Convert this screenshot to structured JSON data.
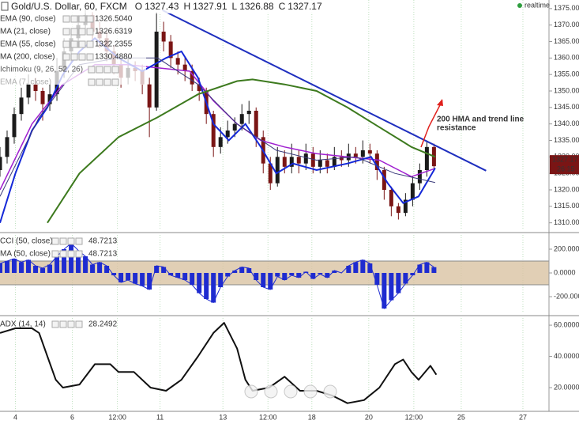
{
  "symbol": "Gold/U.S. Dollar, 60, FXCM",
  "ohlc": [
    {
      "key": "O",
      "value": "1327.43"
    },
    {
      "key": "H",
      "value": "1327.91"
    },
    {
      "key": "L",
      "value": "1326.88"
    },
    {
      "key": "C",
      "value": "1327.17"
    }
  ],
  "status": "realtime",
  "price_tag": {
    "value": 1327.17,
    "label": "1327.17",
    "countdown": "26:15"
  },
  "hidden_indicators": [
    "Ichimoku (9, 26, 52, 26)",
    "EMA (7, close)"
  ],
  "annotation": {
    "text": [
      "200 HMA and trend line",
      "resistance"
    ],
    "color": "#e0201c"
  },
  "chart_data": [
    {
      "type": "candlestick",
      "up_color": "#1b1b1b",
      "down_color": "#7a1515",
      "x": [
        0,
        6,
        12,
        18,
        24,
        30,
        36,
        42,
        48,
        54,
        60,
        66,
        72,
        78,
        84,
        90,
        96,
        102,
        108,
        114,
        120,
        126,
        132,
        138,
        144,
        150,
        156,
        162,
        168,
        174,
        180,
        186,
        192,
        198,
        204,
        210,
        216,
        222,
        228,
        234,
        240,
        246,
        252,
        258,
        264,
        270,
        276,
        282,
        288,
        294,
        300,
        306,
        312,
        318,
        324,
        330,
        336,
        342,
        348,
        354,
        360,
        366
      ],
      "open": [
        1326,
        1330,
        1336,
        1343,
        1348,
        1352,
        1350,
        1346,
        1349,
        1356,
        1362,
        1366,
        1370,
        1373,
        1368,
        1366,
        1362,
        1358,
        1354,
        1357,
        1356,
        1352,
        1345,
        1368,
        1365,
        1360,
        1358,
        1356,
        1352,
        1350,
        1343,
        1333,
        1336,
        1338,
        1340,
        1343,
        1344,
        1336,
        1328,
        1322,
        1330,
        1327,
        1330,
        1328,
        1331,
        1327,
        1329,
        1327,
        1330,
        1329,
        1331,
        1330,
        1332,
        1331,
        1326,
        1320,
        1315,
        1313,
        1317,
        1322,
        1326,
        1333
      ],
      "high": [
        1333,
        1338,
        1345,
        1351,
        1355,
        1354,
        1351,
        1352,
        1360,
        1366,
        1369,
        1373,
        1375,
        1374,
        1371,
        1368,
        1364,
        1360,
        1360,
        1359,
        1358,
        1354,
        1374,
        1371,
        1367,
        1362,
        1360,
        1358,
        1354,
        1351,
        1344,
        1339,
        1341,
        1342,
        1346,
        1347,
        1345,
        1338,
        1330,
        1333,
        1332,
        1334,
        1332,
        1334,
        1333,
        1332,
        1331,
        1333,
        1332,
        1334,
        1333,
        1335,
        1334,
        1332,
        1327,
        1321,
        1316,
        1319,
        1324,
        1328,
        1335,
        1334
      ],
      "low": [
        1324,
        1328,
        1334,
        1341,
        1346,
        1347,
        1341,
        1344,
        1347,
        1354,
        1359,
        1363,
        1367,
        1365,
        1363,
        1359,
        1355,
        1351,
        1352,
        1353,
        1349,
        1336,
        1344,
        1362,
        1357,
        1355,
        1353,
        1350,
        1347,
        1340,
        1330,
        1331,
        1334,
        1336,
        1338,
        1340,
        1333,
        1325,
        1320,
        1321,
        1325,
        1325,
        1325,
        1326,
        1325,
        1325,
        1325,
        1326,
        1327,
        1327,
        1328,
        1328,
        1328,
        1323,
        1317,
        1312,
        1311,
        1312,
        1315,
        1320,
        1324,
        1326
      ],
      "close": [
        1330,
        1336,
        1343,
        1348,
        1352,
        1350,
        1346,
        1349,
        1356,
        1362,
        1366,
        1370,
        1373,
        1368,
        1366,
        1362,
        1358,
        1354,
        1357,
        1356,
        1352,
        1345,
        1368,
        1365,
        1360,
        1358,
        1356,
        1352,
        1350,
        1343,
        1333,
        1336,
        1338,
        1340,
        1343,
        1344,
        1336,
        1328,
        1322,
        1330,
        1327,
        1330,
        1328,
        1331,
        1327,
        1329,
        1327,
        1330,
        1329,
        1331,
        1330,
        1332,
        1331,
        1326,
        1320,
        1315,
        1313,
        1317,
        1322,
        1326,
        1333,
        1327.17
      ],
      "series": [
        {
          "name": "EMA (90, close)",
          "legend_value": "1326.5040",
          "color": "#a020d0",
          "width": 1.5,
          "x": [
            0,
            27,
            53,
            80,
            107,
            133,
            160,
            180,
            200,
            220,
            240,
            267,
            293,
            320,
            347,
            367
          ],
          "values": [
            1320,
            1340,
            1352,
            1358,
            1358,
            1357,
            1356,
            1347,
            1340,
            1335,
            1333,
            1331,
            1330,
            1329,
            1324,
            1326.5
          ]
        },
        {
          "name": "MA (21, close)",
          "legend_value": "1326.6319",
          "color": "#1428d8",
          "width": 2,
          "x": [
            0,
            13,
            27,
            40,
            53,
            67,
            80,
            100,
            120,
            140,
            153,
            167,
            180,
            193,
            207,
            220,
            233,
            247,
            267,
            293,
            313,
            327,
            340,
            353,
            367
          ],
          "values": [
            1310,
            1325,
            1338,
            1345,
            1355,
            1362,
            1366,
            1360,
            1356,
            1360,
            1362,
            1354,
            1340,
            1335,
            1340,
            1333,
            1325,
            1328,
            1326,
            1328,
            1330,
            1322,
            1316,
            1318,
            1326.6
          ]
        },
        {
          "name": "EMA (55, close)",
          "legend_value": "1322.2355",
          "color": "#3a3a7a",
          "width": 1,
          "x": [
            0,
            33,
            67,
            100,
            133,
            167,
            200,
            233,
            267,
            300,
            333,
            367
          ],
          "values": [
            1318,
            1342,
            1358,
            1360,
            1360,
            1352,
            1340,
            1332,
            1329,
            1330,
            1325,
            1322.2
          ]
        },
        {
          "name": "MA (200, close)",
          "legend_value": "1330.4880",
          "color": "#3d7a1e",
          "width": 2,
          "x": [
            40,
            67,
            100,
            133,
            167,
            200,
            213,
            240,
            267,
            293,
            320,
            347,
            367
          ],
          "values": [
            1310,
            1325,
            1336,
            1342,
            1349,
            1353,
            1353.5,
            1352,
            1350,
            1345,
            1339,
            1333,
            1330
          ]
        }
      ],
      "trendline": {
        "x": [
          137,
          410
        ],
        "values": [
          1374.5,
          1325.8
        ],
        "color": "#1f2fbf"
      },
      "xlim": [
        0,
        463
      ],
      "ylim": [
        1308,
        1377.6
      ],
      "yticks": [
        {
          "value": 1310,
          "label": "1310.00"
        },
        {
          "value": 1315,
          "label": "1315.00"
        },
        {
          "value": 1320,
          "label": "1320.00"
        },
        {
          "value": 1325,
          "label": "1325.00"
        },
        {
          "value": 1330,
          "label": "1330.00"
        },
        {
          "value": 1335,
          "label": "1335.00"
        },
        {
          "value": 1340,
          "label": "1340.00"
        },
        {
          "value": 1345,
          "label": "1345.00"
        },
        {
          "value": 1350,
          "label": "1350.00"
        },
        {
          "value": 1355,
          "label": "1355.00"
        },
        {
          "value": 1360,
          "label": "1360.00"
        },
        {
          "value": 1365,
          "label": "1365.00"
        },
        {
          "value": 1370,
          "label": "1370.00"
        },
        {
          "value": 1375,
          "label": "1375.00"
        }
      ]
    },
    {
      "type": "bar",
      "color": "#1e2bd0",
      "band": [
        -100,
        100
      ],
      "band_color": "#d9c3a3",
      "series_labels": [
        {
          "name": "CCI (50, close)",
          "legend_value": "48.7213"
        },
        {
          "name": "MA (50, close)",
          "legend_value": "48.7213"
        }
      ],
      "x": [
        0,
        6,
        12,
        18,
        24,
        30,
        36,
        42,
        48,
        54,
        60,
        66,
        72,
        78,
        84,
        90,
        96,
        102,
        108,
        114,
        120,
        126,
        132,
        138,
        144,
        150,
        156,
        162,
        168,
        174,
        180,
        186,
        192,
        198,
        204,
        210,
        216,
        222,
        228,
        234,
        240,
        246,
        252,
        258,
        264,
        270,
        276,
        282,
        288,
        294,
        300,
        306,
        312,
        318,
        324,
        330,
        336,
        342,
        348,
        354,
        360,
        366
      ],
      "values": [
        80,
        100,
        120,
        90,
        110,
        60,
        40,
        70,
        140,
        200,
        250,
        190,
        140,
        70,
        90,
        60,
        -20,
        -80,
        -60,
        -90,
        -110,
        -140,
        60,
        50,
        -20,
        -40,
        -60,
        -100,
        -170,
        -220,
        -250,
        -120,
        -30,
        20,
        50,
        40,
        -60,
        -120,
        -140,
        -30,
        -60,
        -20,
        -40,
        10,
        -50,
        -10,
        -40,
        20,
        0,
        60,
        90,
        110,
        80,
        -100,
        -300,
        -230,
        -170,
        -90,
        -20,
        70,
        90,
        48.7
      ],
      "xlim": [
        0,
        463
      ],
      "ylim": [
        -333,
        320
      ],
      "yticks": [
        {
          "value": 200,
          "label": "200.0000"
        },
        {
          "value": 0,
          "label": "0.0000"
        },
        {
          "value": -200,
          "label": "-200.0000"
        }
      ]
    },
    {
      "type": "line",
      "color": "#111111",
      "series_labels": [
        {
          "name": "ADX (14, 14)",
          "legend_value": "28.2492"
        }
      ],
      "x": [
        0,
        13,
        27,
        33,
        40,
        47,
        53,
        67,
        80,
        93,
        100,
        113,
        127,
        140,
        153,
        167,
        180,
        189,
        200,
        207,
        213,
        227,
        240,
        253,
        267,
        280,
        293,
        307,
        320,
        333,
        340,
        347,
        353,
        363,
        368
      ],
      "values": [
        55,
        58,
        58,
        55,
        40,
        25,
        20,
        22,
        35,
        35,
        30,
        30,
        20,
        18,
        25,
        40,
        55,
        61.5,
        45,
        25,
        18,
        20,
        27,
        18,
        18,
        15,
        10,
        12,
        20,
        35,
        38,
        30,
        25,
        34,
        28.25
      ],
      "xlim": [
        0,
        463
      ],
      "ylim": [
        4.8,
        64.6
      ],
      "yticks": [
        {
          "value": 60,
          "label": "60.0000"
        },
        {
          "value": 40,
          "label": "40.0000"
        },
        {
          "value": 20,
          "label": "20.0000"
        }
      ],
      "xticks": [
        {
          "value": 13,
          "label": "4"
        },
        {
          "value": 61,
          "label": "6"
        },
        {
          "value": 99,
          "label": "12:00"
        },
        {
          "value": 135,
          "label": "11"
        },
        {
          "value": 188,
          "label": "13"
        },
        {
          "value": 226,
          "label": "12:00"
        },
        {
          "value": 263,
          "label": "18"
        },
        {
          "value": 311,
          "label": "20"
        },
        {
          "value": 349,
          "label": "12:00"
        },
        {
          "value": 389,
          "label": "25"
        },
        {
          "value": 441,
          "label": "27"
        }
      ]
    }
  ]
}
